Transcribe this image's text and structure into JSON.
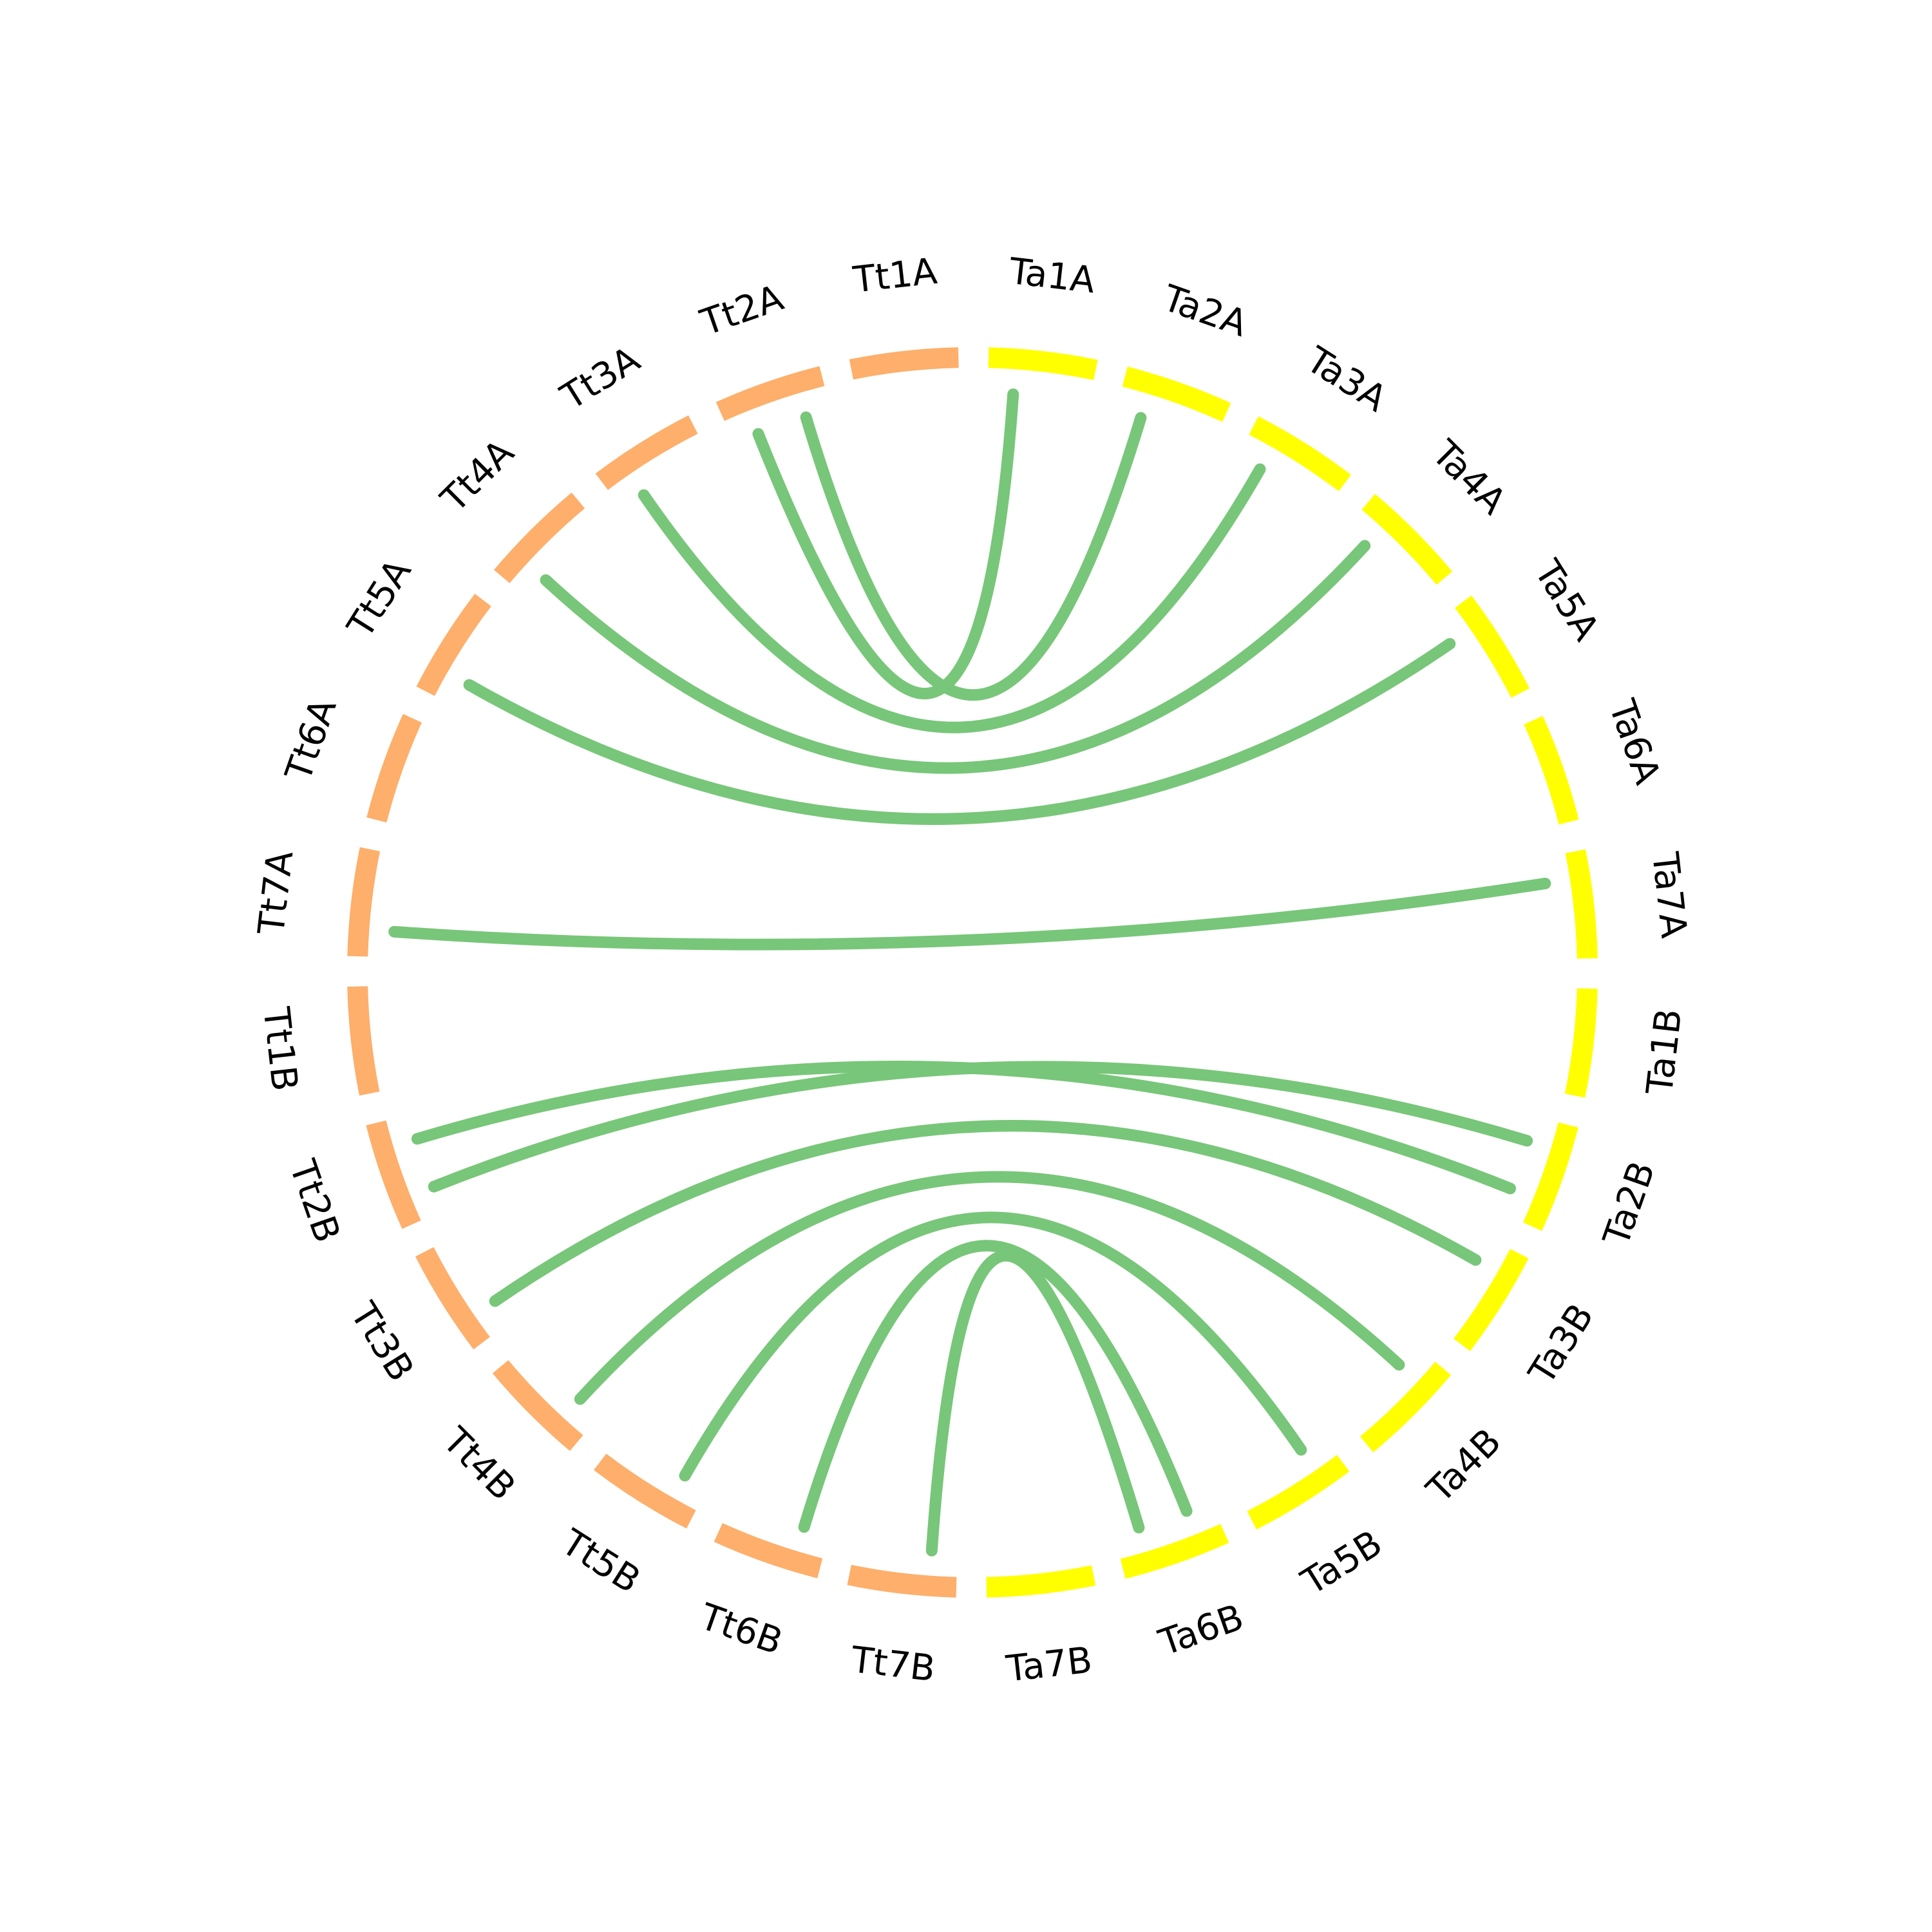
{
  "colors": {
    "group_tt": "#FDAF6B",
    "group_ta": "#FFFF00",
    "links": "#78C679",
    "label": "#000000",
    "background": "#FFFFFF"
  },
  "segments": [
    {
      "id": "Ta1A",
      "label": "Ta1A",
      "group": "ta"
    },
    {
      "id": "Ta2A",
      "label": "Ta2A",
      "group": "ta"
    },
    {
      "id": "Ta3A",
      "label": "Ta3A",
      "group": "ta"
    },
    {
      "id": "Ta4A",
      "label": "Ta4A",
      "group": "ta"
    },
    {
      "id": "Ta5A",
      "label": "Ta5A",
      "group": "ta"
    },
    {
      "id": "Ta6A",
      "label": "Ta6A",
      "group": "ta"
    },
    {
      "id": "Ta7A",
      "label": "Ta7A",
      "group": "ta"
    },
    {
      "id": "Ta1B",
      "label": "Ta1B",
      "group": "ta"
    },
    {
      "id": "Ta2B",
      "label": "Ta2B",
      "group": "ta"
    },
    {
      "id": "Ta3B",
      "label": "Ta3B",
      "group": "ta"
    },
    {
      "id": "Ta4B",
      "label": "Ta4B",
      "group": "ta"
    },
    {
      "id": "Ta5B",
      "label": "Ta5B",
      "group": "ta"
    },
    {
      "id": "Ta6B",
      "label": "Ta6B",
      "group": "ta"
    },
    {
      "id": "Ta7B",
      "label": "Ta7B",
      "group": "ta"
    },
    {
      "id": "Tt7B",
      "label": "Tt7B",
      "group": "tt"
    },
    {
      "id": "Tt6B",
      "label": "Tt6B",
      "group": "tt"
    },
    {
      "id": "Tt5B",
      "label": "Tt5B",
      "group": "tt"
    },
    {
      "id": "Tt4B",
      "label": "Tt4B",
      "group": "tt"
    },
    {
      "id": "Tt3B",
      "label": "Tt3B",
      "group": "tt"
    },
    {
      "id": "Tt2B",
      "label": "Tt2B",
      "group": "tt"
    },
    {
      "id": "Tt1B",
      "label": "Tt1B",
      "group": "tt"
    },
    {
      "id": "Tt7A",
      "label": "Tt7A",
      "group": "tt"
    },
    {
      "id": "Tt6A",
      "label": "Tt6A",
      "group": "tt"
    },
    {
      "id": "Tt5A",
      "label": "Tt5A",
      "group": "tt"
    },
    {
      "id": "Tt4A",
      "label": "Tt4A",
      "group": "tt"
    },
    {
      "id": "Tt3A",
      "label": "Tt3A",
      "group": "tt"
    },
    {
      "id": "Tt2A",
      "label": "Tt2A",
      "group": "tt"
    },
    {
      "id": "Tt1A",
      "label": "Tt1A",
      "group": "tt"
    }
  ],
  "links": [
    {
      "from": "Tt2A",
      "to": "Ta1A"
    },
    {
      "from": "Tt2A",
      "to": "Ta2A"
    },
    {
      "from": "Tt3A",
      "to": "Ta3A"
    },
    {
      "from": "Tt4A",
      "to": "Ta4A"
    },
    {
      "from": "Tt5A",
      "to": "Ta5A"
    },
    {
      "from": "Tt7A",
      "to": "Ta7A"
    },
    {
      "from": "Tt2B",
      "to": "Ta2B"
    },
    {
      "from": "Tt2B",
      "to": "Ta2B"
    },
    {
      "from": "Tt3B",
      "to": "Ta3B"
    },
    {
      "from": "Tt4B",
      "to": "Ta4B"
    },
    {
      "from": "Tt5B",
      "to": "Ta5B"
    },
    {
      "from": "Tt6B",
      "to": "Ta6B"
    },
    {
      "from": "Tt7B",
      "to": "Ta6B"
    }
  ]
}
